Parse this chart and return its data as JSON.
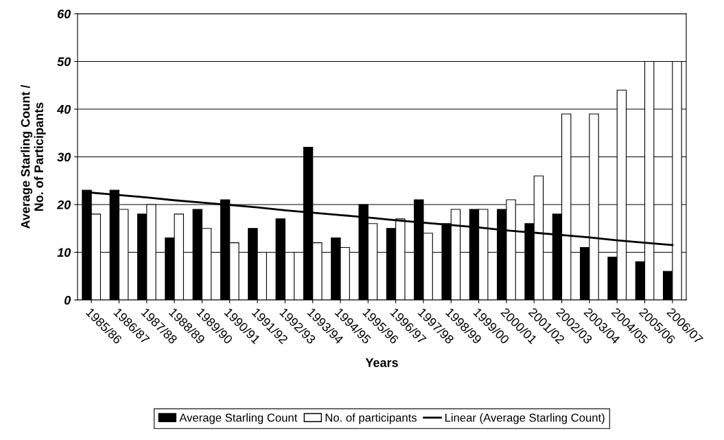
{
  "chart_data": {
    "type": "bar",
    "xlabel": "Years",
    "ylabel": "Average Starling Count /\nNo. of Participants",
    "categories": [
      "1985/86",
      "1986/87",
      "1987/88",
      "1988/89",
      "1989/90",
      "1990/91",
      "1991/92",
      "1992/93",
      "1993/94",
      "1994/95",
      "1995/96",
      "1996/97",
      "1997/98",
      "1998/99",
      "1999/00",
      "2000/01",
      "2001/02",
      "2002/03",
      "2003/04",
      "2004/05",
      "2005/06",
      "2006/07"
    ],
    "series": [
      {
        "name": "Average Starling Count",
        "color": "#000000",
        "values": [
          23,
          23,
          18,
          13,
          19,
          21,
          15,
          17,
          32,
          13,
          20,
          15,
          21,
          16,
          19,
          19,
          16,
          18,
          11,
          9,
          8,
          6
        ]
      },
      {
        "name": "No. of participants",
        "color": "#ffffff",
        "values": [
          18,
          19,
          20,
          18,
          15,
          12,
          10,
          10,
          12,
          11,
          16,
          17,
          14,
          19,
          19,
          21,
          26,
          39,
          39,
          44,
          50,
          50
        ]
      },
      {
        "name": "Linear (Average Starling Count)",
        "type": "line",
        "color": "#000000",
        "values": [
          22.5,
          22.0,
          21.5,
          20.9,
          20.4,
          19.9,
          19.4,
          18.8,
          18.3,
          17.8,
          17.3,
          16.7,
          16.2,
          15.7,
          15.2,
          14.6,
          14.1,
          13.6,
          13.1,
          12.5,
          12.0,
          11.5
        ]
      }
    ],
    "ylim": [
      0,
      60
    ],
    "yticks": [
      0,
      10,
      20,
      30,
      40,
      50,
      60
    ],
    "grid": "y",
    "legend": "bottom"
  }
}
